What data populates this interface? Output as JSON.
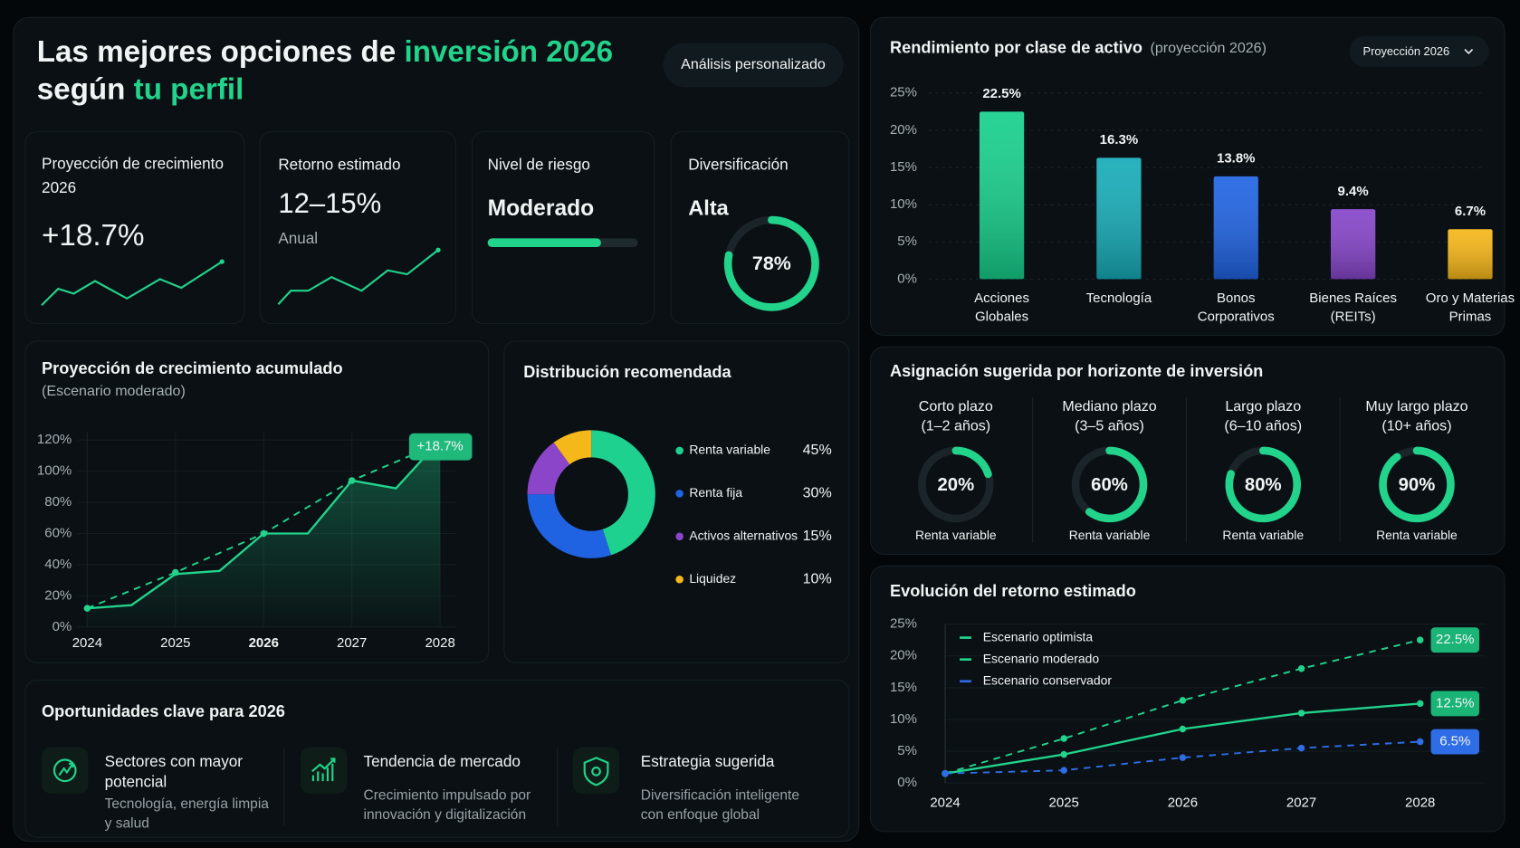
{
  "header": {
    "title_start": "Las mejores opciones de ",
    "title_highlight": "inversión 2026",
    "title_line2_start": "según ",
    "title_line2_highlight": "tu perfil",
    "button": "Análisis personalizado"
  },
  "kpis": [
    {
      "label": "Proyección de crecimiento 2026",
      "value": "+18.7%"
    },
    {
      "label": "Retorno estimado",
      "value": "12–15%",
      "note": "Anual"
    },
    {
      "label": "Nivel de riesgo",
      "value": "Moderado"
    },
    {
      "label": "Diversificación",
      "value": "Alta",
      "gauge": 78,
      "gauge_label": "78%"
    }
  ],
  "chart_data": [
    {
      "type": "bar",
      "title": "Rendimiento por clase de activo",
      "subtitle": "(proyección 2026)",
      "control": "Proyección 2026",
      "categories": [
        "Acciones Globales",
        "Tecnología",
        "Bonos Corporativos",
        "Bienes Raíces (REITs)",
        "Oro y Materias Primas"
      ],
      "values": [
        22.5,
        16.3,
        13.8,
        9.4,
        6.7
      ],
      "value_labels": [
        "22.5%",
        "16.3%",
        "13.8%",
        "9.4%",
        "6.7%"
      ],
      "colors": [
        "#16cf8c",
        "#16acb8",
        "#1f63e3",
        "#8544c9",
        "#f5b617"
      ],
      "ylim": [
        0,
        25
      ],
      "yticks": [
        {
          "value": 0,
          "label": "0%"
        },
        {
          "value": 5,
          "label": "5%"
        },
        {
          "value": 10,
          "label": "10%"
        },
        {
          "value": 15,
          "label": "15%"
        },
        {
          "value": 20,
          "label": "20%"
        },
        {
          "value": 25,
          "label": "25%"
        }
      ],
      "grid": true
    },
    {
      "type": "line",
      "title": "Proyección de crecimiento acumulado",
      "subtitle": "(Escenario moderado)",
      "x": [
        2024,
        2024.5,
        2025,
        2025.5,
        2026,
        2026.5,
        2027,
        2027.5,
        2028
      ],
      "series": [
        {
          "color": "#22d38c",
          "style": "solid",
          "area": true,
          "values": [
            12,
            14,
            34,
            36,
            60,
            60,
            94,
            89,
            120
          ]
        },
        {
          "color": "#22d38c",
          "style": "dashed",
          "markers": true,
          "x": [
            2024,
            2025,
            2026,
            2027,
            2028
          ],
          "values": [
            12,
            35,
            60,
            94,
            118
          ]
        }
      ],
      "annotation": "+18.7%",
      "xlim": [
        2024,
        2028
      ],
      "xticks": [
        2024,
        2025,
        2026,
        2027,
        2028
      ],
      "highlight": 2026,
      "ylim": [
        0,
        125
      ],
      "yticks": [
        {
          "value": 0,
          "label": "0%"
        },
        {
          "value": 20,
          "label": "20%"
        },
        {
          "value": 40,
          "label": "40%"
        },
        {
          "value": 60,
          "label": "60%"
        },
        {
          "value": 80,
          "label": "80%"
        },
        {
          "value": 100,
          "label": "100%"
        },
        {
          "value": 120,
          "label": "120%"
        }
      ],
      "grid": true
    },
    {
      "type": "donut",
      "title": "Distribución recomendada",
      "categories": [
        "Renta variable",
        "Renta fija",
        "Activos alternativos",
        "Liquidez"
      ],
      "values": [
        45,
        30,
        15,
        10
      ],
      "value_labels": [
        "45%",
        "30%",
        "15%",
        "10%"
      ],
      "colors": [
        "#1fd18f",
        "#1f63e3",
        "#8a45c8",
        "#f5b81a"
      ]
    },
    {
      "type": "gauge",
      "title": "Asignación sugerida por horizonte de inversión",
      "categories": [
        "Corto plazo",
        "Mediano plazo",
        "Largo plazo",
        "Muy largo plazo"
      ],
      "periods": [
        "(1–2 años)",
        "(3–5 años)",
        "(6–10 años)",
        "(10+ años)"
      ],
      "values": [
        20,
        60,
        80,
        90
      ],
      "value_labels": [
        "20%",
        "60%",
        "80%",
        "90%"
      ],
      "caption": "Renta variable",
      "color": "#22d38c"
    },
    {
      "type": "line",
      "title": "Evolución del retorno estimado",
      "x": [
        2024,
        2025,
        2026,
        2027,
        2028
      ],
      "series": [
        {
          "name": "Escenario optimista",
          "color": "#22d38c",
          "style": "dashed",
          "markers": true,
          "values": [
            1.5,
            7,
            13,
            18,
            22.5
          ],
          "end_label": "22.5%"
        },
        {
          "name": "Escenario moderado",
          "color": "#22d38c",
          "style": "solid",
          "markers": true,
          "values": [
            1.5,
            4.5,
            8.5,
            11,
            12.5
          ],
          "end_label": "12.5%"
        },
        {
          "name": "Escenario conservador",
          "color": "#2f6de6",
          "style": "dashed",
          "markers": true,
          "values": [
            1.5,
            2,
            4,
            5.5,
            6.5
          ],
          "end_label": "6.5%"
        }
      ],
      "xlim": [
        2024,
        2028
      ],
      "xticks": [
        2024,
        2025,
        2026,
        2027,
        2028
      ],
      "ylim": [
        0,
        25
      ],
      "yticks": [
        {
          "value": 0,
          "label": "0%"
        },
        {
          "value": 5,
          "label": "5%"
        },
        {
          "value": 10,
          "label": "10%"
        },
        {
          "value": 15,
          "label": "15%"
        },
        {
          "value": 20,
          "label": "20%"
        },
        {
          "value": 25,
          "label": "25%"
        }
      ],
      "legend": "upper-left",
      "grid": true
    }
  ],
  "opportunities": {
    "title": "Oportunidades clave para 2026",
    "items": [
      {
        "title": "Sectores con mayor potencial",
        "text": "Tecnología, energía limpia y salud"
      },
      {
        "title": "Tendencia de mercado",
        "text": "Crecimiento impulsado por innovación y digitalización"
      },
      {
        "title": "Estrategia sugerida",
        "text": "Diversificación inteligente con enfoque global"
      }
    ]
  }
}
